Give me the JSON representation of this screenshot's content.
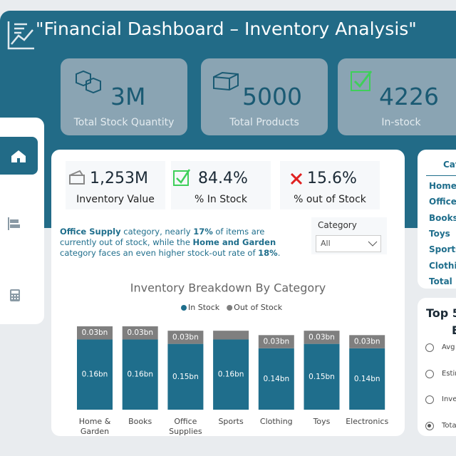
{
  "header": {
    "title": "\"Financial Dashboard – Inventory Analysis\""
  },
  "kpi_cards": [
    {
      "value": "3M",
      "label": "Total Stock Quantity"
    },
    {
      "value": "5000",
      "label": "Total Products"
    },
    {
      "value": "4226",
      "label": "In-stock"
    }
  ],
  "metrics": [
    {
      "value": "1,253M",
      "label": "Inventory Value"
    },
    {
      "value": "84.4%",
      "label": "% In Stock"
    },
    {
      "value": "15.6%",
      "label": "% out of Stock"
    }
  ],
  "narrative": [
    {
      "text": "Office Supply",
      "bold": true
    },
    {
      "text": " category, nearly ",
      "bold": false
    },
    {
      "text": "17%",
      "bold": true
    },
    {
      "text": " of items are currently out of stock, while the ",
      "bold": false
    },
    {
      "text": "Home and Garden",
      "bold": true
    },
    {
      "text": " category faces an even higher stock-out rate of ",
      "bold": false
    },
    {
      "text": "18%",
      "bold": true
    },
    {
      "text": ".",
      "bold": false
    }
  ],
  "slicer": {
    "label": "Category",
    "selected": "All"
  },
  "chart_data": {
    "type": "stacked_bar",
    "title": "Inventory Breakdown By Category",
    "categories": [
      "Home & Garden",
      "Books",
      "Office Supplies",
      "Sports",
      "Clothing",
      "Toys",
      "Electronics"
    ],
    "series": [
      {
        "name": "In Stock",
        "color": "#1f6e8c",
        "values": [
          0.16,
          0.16,
          0.15,
          0.16,
          0.14,
          0.15,
          0.14
        ],
        "value_labels": [
          "0.16bn",
          "0.16bn",
          "0.15bn",
          "0.16bn",
          "0.14bn",
          "0.15bn",
          "0.14bn"
        ]
      },
      {
        "name": "Out of Stock",
        "color": "#7f7f7f",
        "values": [
          0.03,
          0.03,
          0.03,
          0.02,
          0.03,
          0.03,
          0.03
        ],
        "value_labels": [
          "0.03bn",
          "0.03bn",
          "0.03bn",
          null,
          "0.03bn",
          "0.03bn",
          "0.03bn"
        ]
      }
    ],
    "legend": "top"
  },
  "category_table": {
    "header": "Cat",
    "rows": [
      "Home",
      "Office S",
      "Books",
      "Toys",
      "Sports",
      "Clothin",
      "Total"
    ]
  },
  "top_panel": {
    "title": "Top 5",
    "subtitle": "E",
    "options": [
      "Avg",
      "Estin",
      "Inve",
      "Tota"
    ],
    "selected": 3
  }
}
